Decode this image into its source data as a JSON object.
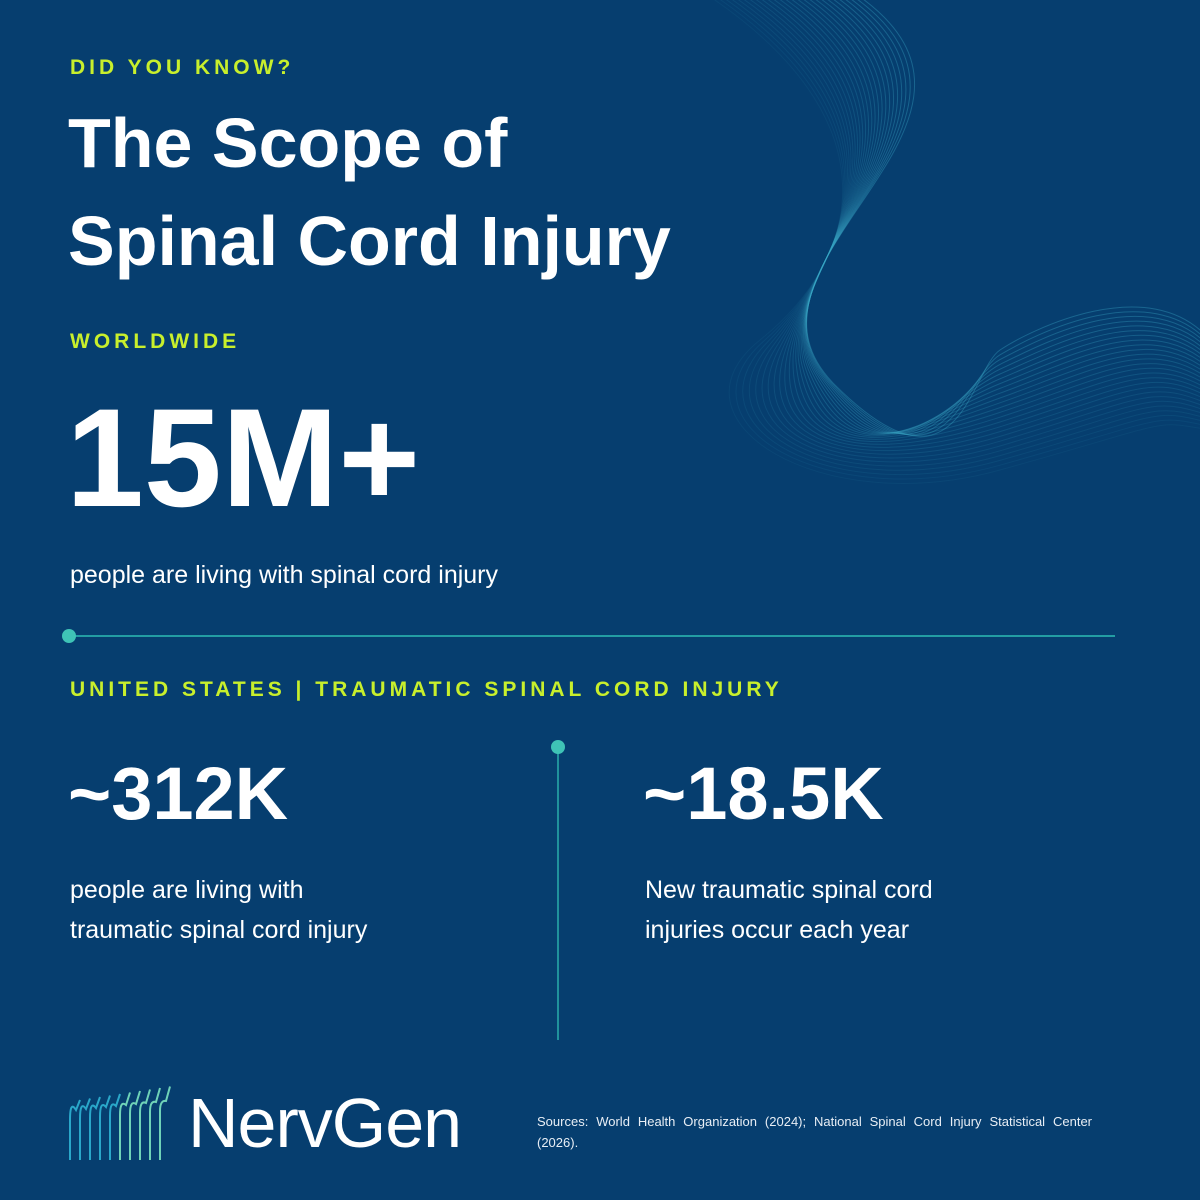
{
  "eyebrow": "DID YOU KNOW?",
  "title_lines": [
    "The Scope of",
    "Spinal Cord Injury"
  ],
  "worldwide": {
    "label": "WORLDWIDE",
    "stat": "15M+",
    "description": "people are living with spinal cord injury"
  },
  "united_states": {
    "label": "UNITED STATES | TRAUMATIC SPINAL CORD INJURY",
    "stats": [
      {
        "stat": "~312K",
        "description_lines": [
          "people are living with",
          "traumatic spinal cord injury"
        ]
      },
      {
        "stat": "~18.5K",
        "description_lines": [
          "New traumatic spinal cord",
          "injuries occur each year"
        ]
      }
    ]
  },
  "logo": "NervGen",
  "sources": "Sources: World Health Organization (2024); National Spinal Cord Injury Statistical Center (2026)."
}
